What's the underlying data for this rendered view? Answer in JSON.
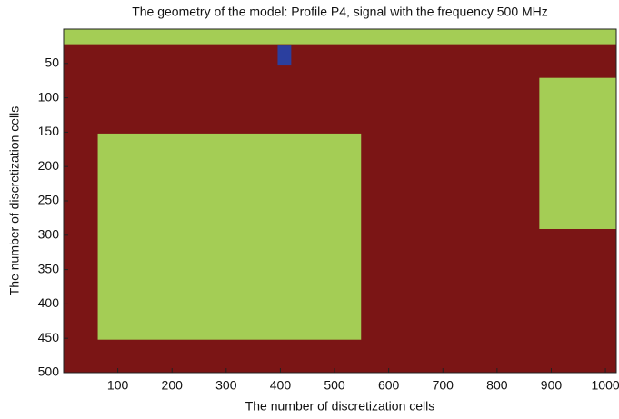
{
  "chart_data": {
    "type": "regions",
    "title": "The geometry of the model: Profile P4, signal with the frequency 500 MHz",
    "xlabel": "The number of discretization cells",
    "ylabel": "The number of discretization cells",
    "background": "#7b1515",
    "regions": [
      {
        "color": "#a4cd55",
        "x": [
          0,
          1020
        ],
        "y": [
          0,
          22
        ]
      },
      {
        "color": "#a4cd55",
        "x": [
          63,
          549
        ],
        "y": [
          152,
          452
        ]
      },
      {
        "color": "#a4cd55",
        "x": [
          878,
          1020
        ],
        "y": [
          71,
          291
        ]
      },
      {
        "color": "#2b3f9f",
        "x": [
          395,
          420
        ],
        "y": [
          24,
          53
        ]
      }
    ],
    "xlim": [
      0,
      1020
    ],
    "ylim": [
      500,
      0
    ],
    "xticks": [
      100,
      200,
      300,
      400,
      500,
      600,
      700,
      800,
      900,
      1000
    ],
    "yticks": [
      50,
      100,
      150,
      200,
      250,
      300,
      350,
      400,
      450,
      500
    ]
  }
}
